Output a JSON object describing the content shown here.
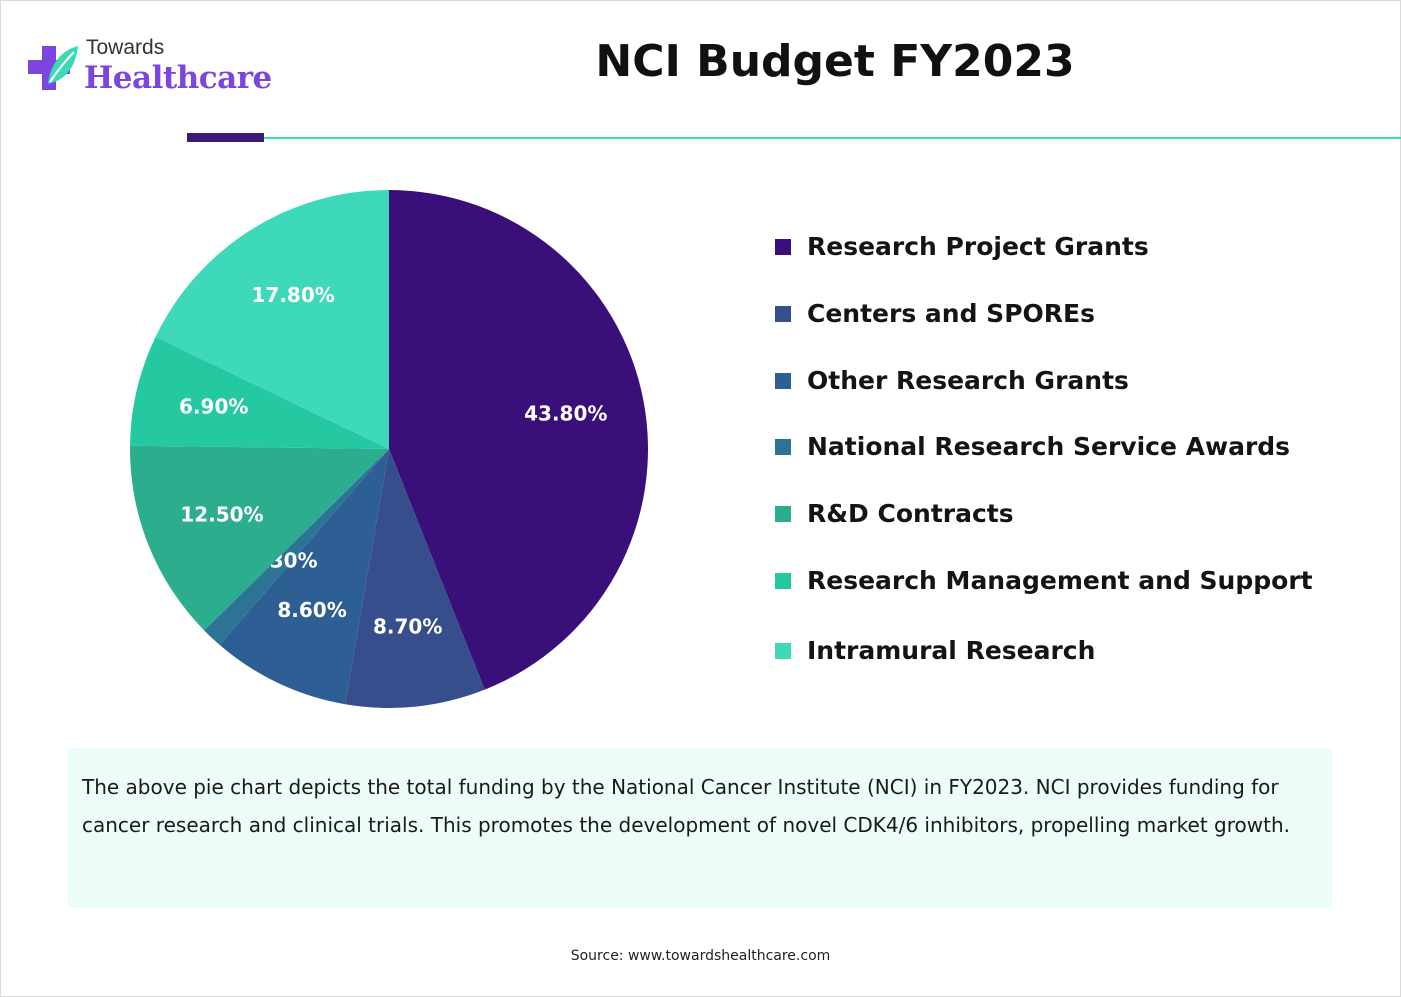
{
  "brand": {
    "line1": "Towards",
    "line2": "Healthcare"
  },
  "title": "NCI Budget FY2023",
  "colors": {
    "accent_purple": "#3a1b7a",
    "accent_teal": "#3dd9b5",
    "note_bg": "#ecfcf6",
    "brand_purple": "#7d45e0"
  },
  "chart_data": {
    "type": "pie",
    "title": "NCI Budget FY2023",
    "legend_position": "right",
    "slices": [
      {
        "label": "Research Project Grants",
        "value": 43.8,
        "display": "43.80%",
        "color": "#3b0f7a"
      },
      {
        "label": "Centers and SPOREs",
        "value": 8.7,
        "display": "8.70%",
        "color": "#374e8d"
      },
      {
        "label": "Other Research Grants",
        "value": 8.6,
        "display": "8.60%",
        "color": "#2e5f94"
      },
      {
        "label": "National Research Service Awards",
        "value": 1.3,
        "display": "1.30%",
        "color": "#2d7396"
      },
      {
        "label": "R&D Contracts",
        "value": 12.5,
        "display": "12.50%",
        "color": "#2cae8e"
      },
      {
        "label": "Research Management and Support",
        "value": 6.9,
        "display": "6.90%",
        "color": "#24c9a2"
      },
      {
        "label": "Intramural Research",
        "value": 17.8,
        "display": "17.80%",
        "color": "#3dd9b8"
      }
    ]
  },
  "note": "The above pie chart depicts the total funding by the National Cancer Institute (NCI) in FY2023. NCI provides funding for cancer research and clinical trials. This promotes the development of novel CDK4/6 inhibitors, propelling market growth.",
  "source": "Source: www.towardshealthcare.com"
}
